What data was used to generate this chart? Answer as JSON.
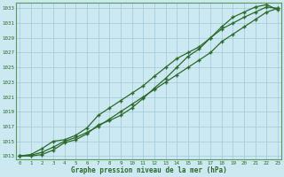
{
  "line1": [
    1013.0,
    1013.1,
    1013.5,
    1014.2,
    1015.0,
    1015.5,
    1016.2,
    1017.0,
    1018.0,
    1019.0,
    1020.0,
    1021.0,
    1022.0,
    1023.0,
    1024.0,
    1025.0,
    1026.0,
    1027.0,
    1028.5,
    1029.5,
    1030.5,
    1031.5,
    1032.5,
    1033.0
  ],
  "line2": [
    1013.0,
    1013.2,
    1014.0,
    1015.0,
    1015.2,
    1015.8,
    1016.8,
    1018.5,
    1019.5,
    1020.5,
    1021.5,
    1022.5,
    1023.8,
    1025.0,
    1026.2,
    1027.0,
    1027.8,
    1029.0,
    1030.2,
    1031.0,
    1031.8,
    1032.5,
    1033.2,
    1033.0
  ],
  "line3": [
    1013.0,
    1013.0,
    1013.2,
    1013.8,
    1014.8,
    1015.2,
    1016.0,
    1017.2,
    1017.8,
    1018.5,
    1019.5,
    1020.8,
    1022.2,
    1023.5,
    1025.0,
    1026.5,
    1027.5,
    1029.0,
    1030.5,
    1031.8,
    1032.5,
    1033.2,
    1033.5,
    1032.8
  ],
  "x": [
    0,
    1,
    2,
    3,
    4,
    5,
    6,
    7,
    8,
    9,
    10,
    11,
    12,
    13,
    14,
    15,
    16,
    17,
    18,
    19,
    20,
    21,
    22,
    23
  ],
  "ylim": [
    1012.5,
    1033.8
  ],
  "yticks": [
    1013,
    1015,
    1017,
    1019,
    1021,
    1023,
    1025,
    1027,
    1029,
    1031,
    1033
  ],
  "line_color": "#2d6a2d",
  "marker": "+",
  "bg_color": "#cce8f0",
  "grid_color": "#a0c8d8",
  "xlabel": "Graphe pression niveau de la mer (hPa)",
  "tick_color": "#2d6a2d",
  "xlabel_color": "#2d6a2d",
  "figsize": [
    3.2,
    2.0
  ],
  "dpi": 100
}
